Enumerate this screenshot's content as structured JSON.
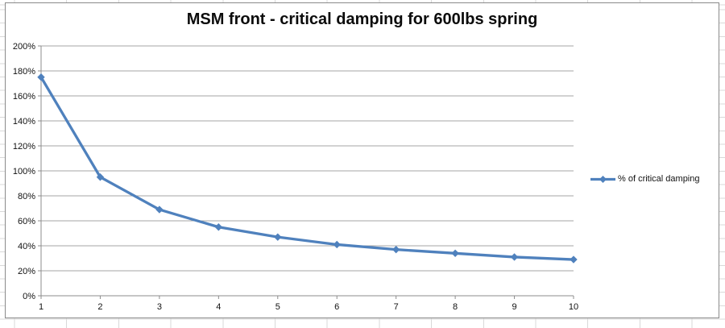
{
  "chart": {
    "title": "MSM front - critical damping for 600lbs spring",
    "legend_label": "% of critical damping",
    "series_color": "#4f81bd",
    "gridline_color": "#a6a6a6",
    "axis_color": "#8c8c8c",
    "y_tick_labels": [
      "0%",
      "20%",
      "40%",
      "60%",
      "80%",
      "100%",
      "120%",
      "140%",
      "160%",
      "180%",
      "200%"
    ],
    "x_tick_labels": [
      "1",
      "2",
      "3",
      "4",
      "5",
      "6",
      "7",
      "8",
      "9",
      "10"
    ]
  },
  "chart_data": {
    "type": "line",
    "title": "MSM front - critical damping for 600lbs spring",
    "x": [
      1,
      2,
      3,
      4,
      5,
      6,
      7,
      8,
      9,
      10
    ],
    "series": [
      {
        "name": "% of critical damping",
        "values": [
          175,
          95,
          69,
          55,
          47,
          41,
          37,
          34,
          31,
          29
        ],
        "unit": "%",
        "marker": "diamond",
        "color": "#4f81bd"
      }
    ],
    "xlabel": "",
    "ylabel": "",
    "ylim": [
      0,
      200
    ],
    "ytick_step": 20,
    "grid": true,
    "legend_position": "right"
  }
}
